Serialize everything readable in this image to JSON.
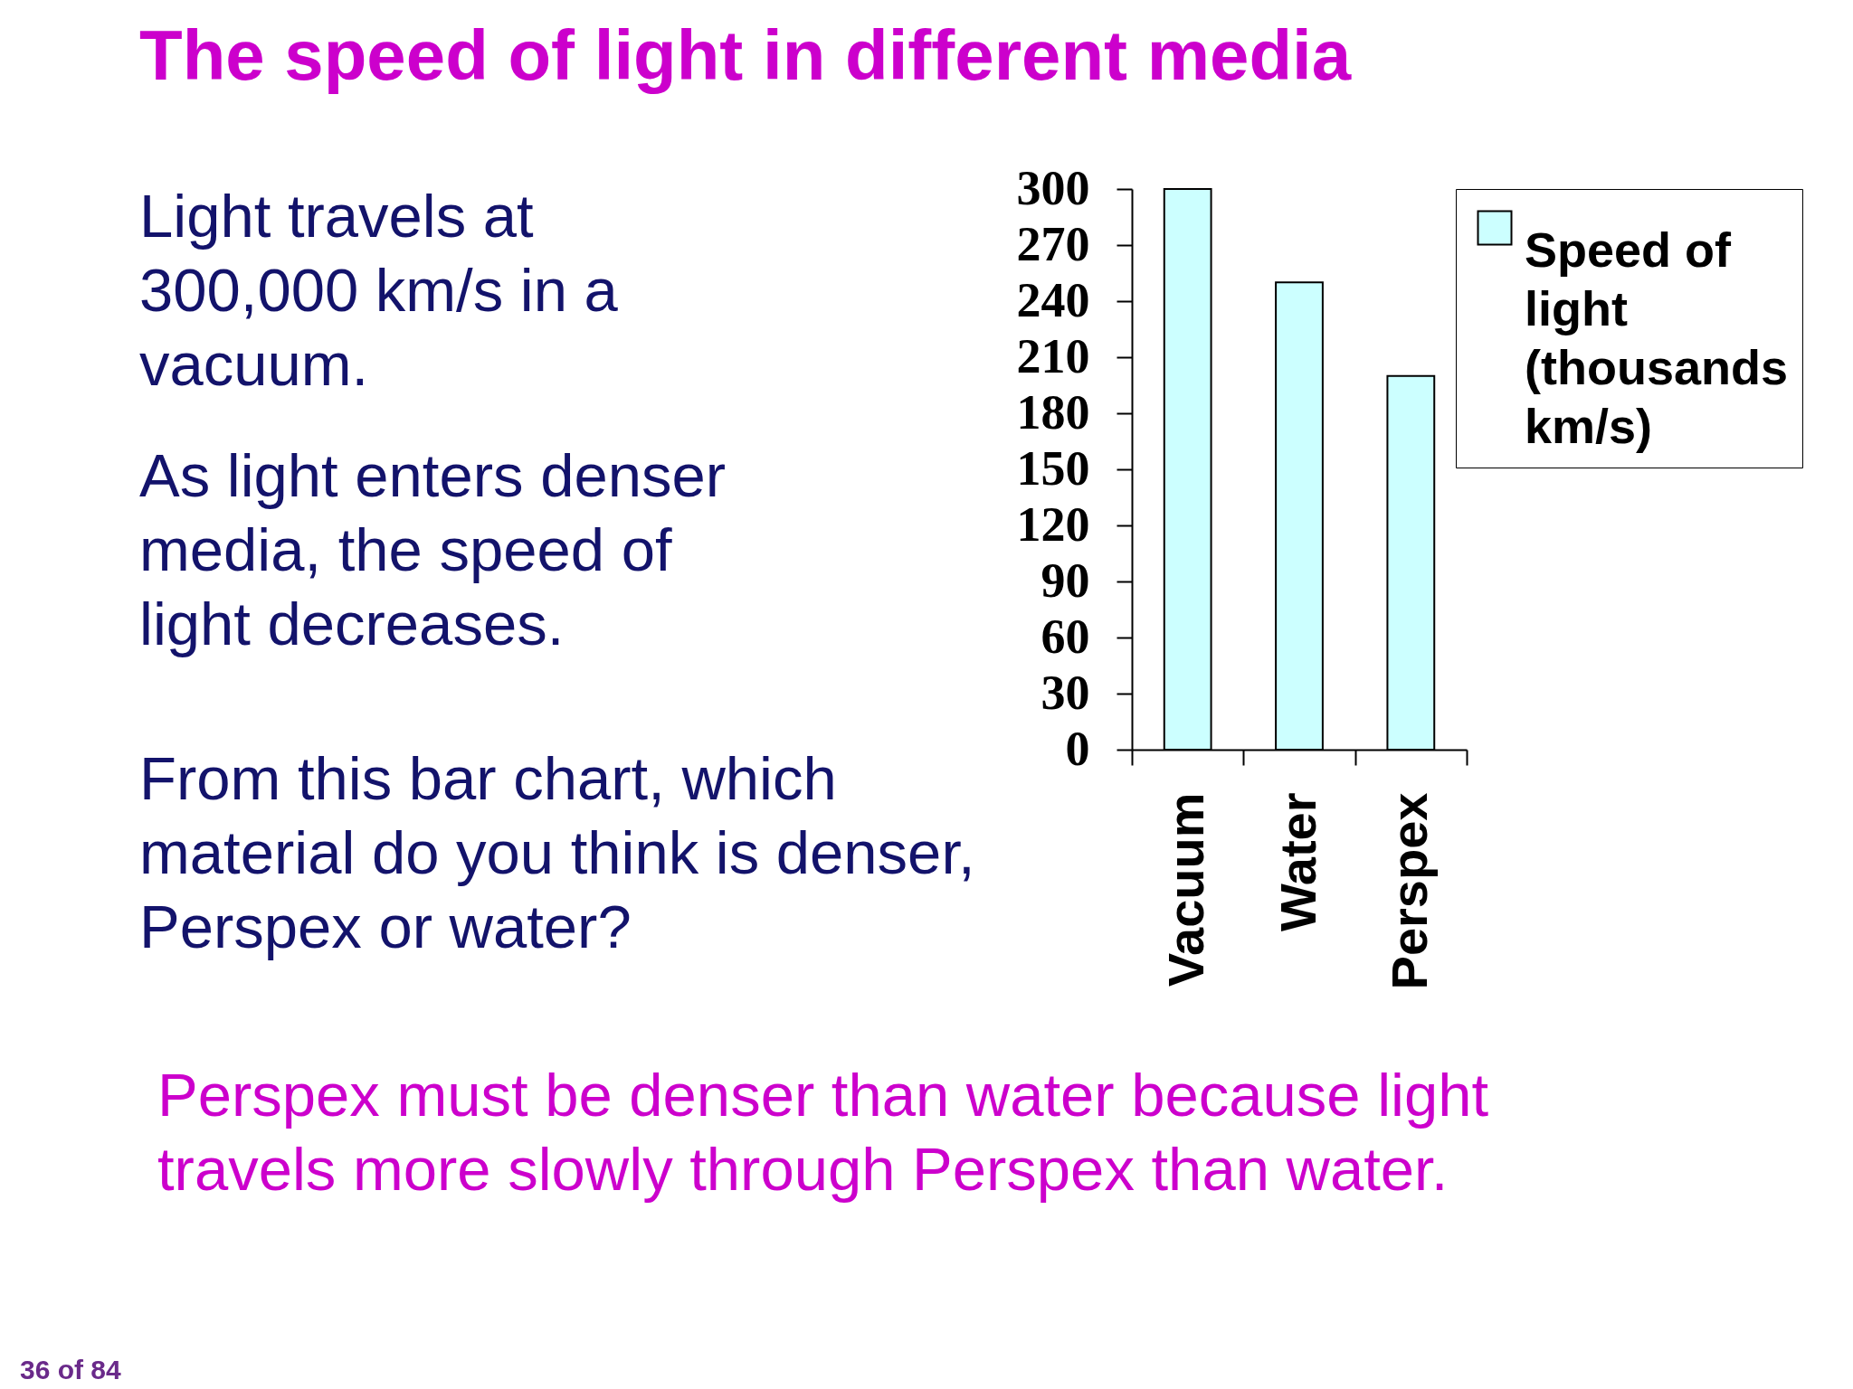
{
  "chart_data": {
    "type": "bar",
    "title": "The speed of light in different media",
    "categories": [
      "Vacuum",
      "Water",
      "Perspex"
    ],
    "series": [
      {
        "name": "Speed of light (thousands km/s)",
        "color": "#ccffff",
        "values": [
          300,
          250,
          200
        ]
      }
    ],
    "ylim": [
      0,
      300
    ],
    "yticks": [
      0,
      30,
      60,
      90,
      120,
      150,
      180,
      210,
      240,
      270,
      300
    ],
    "grid": false,
    "legend": "top right",
    "annotations": [
      "Light travels at 300,000 km/s in a vacuum.",
      "As light enters denser media, the speed of light decreases.",
      "From this bar chart, which material do you think is denser, Perspex or water?",
      "Perspex must be denser than water because light travels more slowly through Perspex than water.",
      "36 of 84"
    ]
  }
}
